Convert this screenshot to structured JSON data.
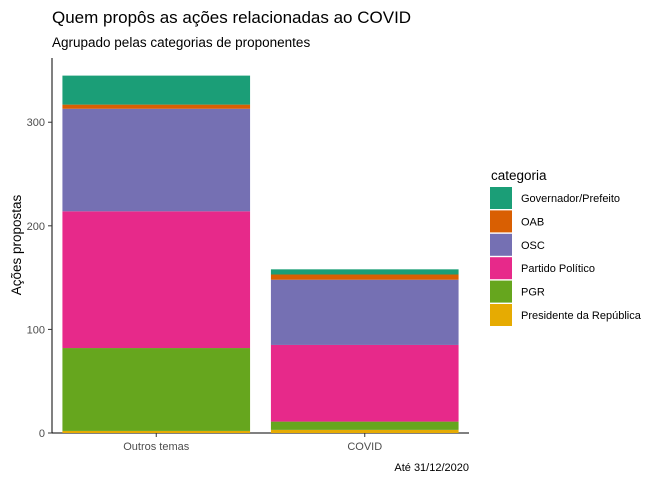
{
  "chart_data": {
    "type": "bar",
    "stacked": true,
    "title": "Quem propôs as ações relacionadas ao COVID",
    "subtitle": "Agrupado pelas categorias de proponentes",
    "xlabel": "",
    "ylabel": "Ações propostas",
    "caption": "Até 31/12/2020",
    "categories": [
      "Outros temas",
      "COVID"
    ],
    "ylim": [
      0,
      362
    ],
    "yticks": [
      0,
      100,
      200,
      300
    ],
    "grid": false,
    "legend": {
      "title": "categoria",
      "position": "right"
    },
    "series": [
      {
        "name": "Presidente da República",
        "color": "#E6AB02",
        "values": [
          2,
          3
        ]
      },
      {
        "name": "PGR",
        "color": "#66A61E",
        "values": [
          80,
          8
        ]
      },
      {
        "name": "Partido Político",
        "color": "#E7298A",
        "values": [
          132,
          74
        ]
      },
      {
        "name": "OSC",
        "color": "#7570B3",
        "values": [
          99,
          63
        ]
      },
      {
        "name": "OAB",
        "color": "#D95F02",
        "values": [
          4,
          5
        ]
      },
      {
        "name": "Governador/Prefeito",
        "color": "#1B9E77",
        "values": [
          28,
          5
        ]
      }
    ],
    "legend_order": [
      "Governador/Prefeito",
      "OAB",
      "OSC",
      "Partido Político",
      "PGR",
      "Presidente da República"
    ]
  }
}
